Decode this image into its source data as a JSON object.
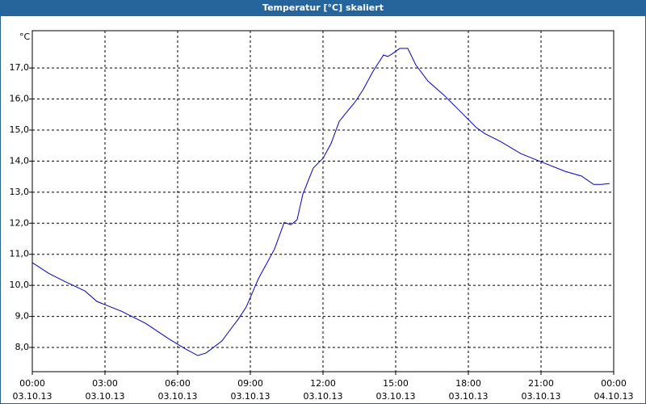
{
  "chart_data": {
    "type": "line",
    "title": "Temperatur [°C] skaliert",
    "y_unit": "°C",
    "x": [
      0,
      0.67,
      1.33,
      2.17,
      2.67,
      3.67,
      4.67,
      5.67,
      6.33,
      6.83,
      7.17,
      7.83,
      8.17,
      8.5,
      8.83,
      9.33,
      10.0,
      10.4,
      10.67,
      10.93,
      11.17,
      11.6,
      12.0,
      12.33,
      12.67,
      13.0,
      13.33,
      13.67,
      14.07,
      14.5,
      14.67,
      14.83,
      15.17,
      15.5,
      15.83,
      16.33,
      17.0,
      17.67,
      18.33,
      18.67,
      19.33,
      20.17,
      21.0,
      22.0,
      22.67,
      23.17,
      23.5,
      23.83
    ],
    "series": [
      {
        "color": "#0000cc",
        "values": [
          10.73,
          10.39,
          10.13,
          9.82,
          9.48,
          9.17,
          8.78,
          8.26,
          7.95,
          7.74,
          7.82,
          8.21,
          8.57,
          8.91,
          9.3,
          10.21,
          11.17,
          12.03,
          11.95,
          12.11,
          12.94,
          13.78,
          14.09,
          14.56,
          15.28,
          15.6,
          15.91,
          16.32,
          16.9,
          17.42,
          17.37,
          17.44,
          17.63,
          17.63,
          17.1,
          16.58,
          16.12,
          15.6,
          15.08,
          14.89,
          14.63,
          14.24,
          13.98,
          13.67,
          13.52,
          13.25,
          13.25,
          13.28
        ]
      }
    ],
    "xlim": [
      0,
      24
    ],
    "ylim": [
      7.22,
      18.2
    ],
    "xticks": [
      {
        "value": 0,
        "label": "00:00"
      },
      {
        "value": 3,
        "label": "03:00"
      },
      {
        "value": 6,
        "label": "06:00"
      },
      {
        "value": 9,
        "label": "09:00"
      },
      {
        "value": 12,
        "label": "12:00"
      },
      {
        "value": 15,
        "label": "15:00"
      },
      {
        "value": 18,
        "label": "18:00"
      },
      {
        "value": 21,
        "label": "21:00"
      },
      {
        "value": 24,
        "label": "00:00"
      }
    ],
    "xtick_dates": [
      "03.10.13",
      "03.10.13",
      "03.10.13",
      "03.10.13",
      "03.10.13",
      "03.10.13",
      "03.10.13",
      "03.10.13",
      "04.10.13"
    ],
    "yticks": [
      {
        "value": 8,
        "label": "8,0"
      },
      {
        "value": 9,
        "label": "9,0"
      },
      {
        "value": 10,
        "label": "10,0"
      },
      {
        "value": 11,
        "label": "11,0"
      },
      {
        "value": 12,
        "label": "12,0"
      },
      {
        "value": 13,
        "label": "13,0"
      },
      {
        "value": 14,
        "label": "14,0"
      },
      {
        "value": 15,
        "label": "15,0"
      },
      {
        "value": 16,
        "label": "16,0"
      },
      {
        "value": 17,
        "label": "17,0"
      }
    ],
    "grid": true
  }
}
